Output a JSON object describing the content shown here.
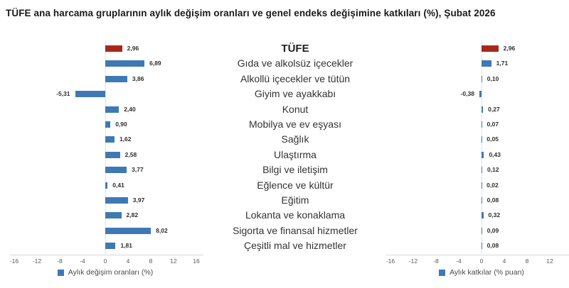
{
  "title": "TÜFE ana harcama gruplarının aylık değişim oranları ve genel endeks değişimine katkıları (%), Şubat 2026",
  "colors": {
    "highlight_bar": "#a8271d",
    "bar": "#3f79b5",
    "zero_line": "#dde2e8",
    "axis_line": "#d8d8d8",
    "tick_text": "#595959",
    "legend_text": "#4a4a4a"
  },
  "chart_data": [
    {
      "type": "bar",
      "orientation": "horizontal",
      "legend": "Aylık değişim oranları (%)",
      "legend_position": "bottom-center",
      "grid": "zero-line-only",
      "xlim": [
        -16,
        16
      ],
      "ticks": [
        -16,
        -12,
        -8,
        -4,
        0,
        4,
        8,
        12,
        16
      ],
      "categories": [
        "TÜFE",
        "Gıda ve alkolsüz içecekler",
        "Alkollü içecekler ve tütün",
        "Giyim ve ayakkabı",
        "Konut",
        "Mobilya ve ev eşyası",
        "Sağlık",
        "Ulaştırma",
        "Bilgi ve iletişim",
        "Eğlence ve kültür",
        "Eğitim",
        "Lokanta ve konaklama",
        "Sigorta ve finansal hizmetler",
        "Çeşitli mal ve hizmetler"
      ],
      "values": [
        2.96,
        6.89,
        3.86,
        -5.31,
        2.4,
        0.9,
        1.62,
        2.58,
        3.77,
        0.41,
        3.97,
        2.82,
        8.02,
        1.81
      ],
      "labels": [
        "2,96",
        "6,89",
        "3,86",
        "-5,31",
        "2,40",
        "0,90",
        "1,62",
        "2,58",
        "3,77",
        "0,41",
        "3,97",
        "2,82",
        "8,02",
        "1,81"
      ]
    },
    {
      "type": "bar",
      "orientation": "horizontal",
      "legend": "Aylık katkılar (% puan)",
      "legend_position": "bottom-center",
      "grid": "zero-line-only",
      "xlim": [
        -16,
        16
      ],
      "ticks": [
        -16,
        -12,
        -8,
        -4,
        0,
        4,
        8,
        12
      ],
      "categories": [
        "TÜFE",
        "Gıda ve alkolsüz içecekler",
        "Alkollü içecekler ve tütün",
        "Giyim ve ayakkabı",
        "Konut",
        "Mobilya ve ev eşyası",
        "Sağlık",
        "Ulaştırma",
        "Bilgi ve iletişim",
        "Eğlence ve kültür",
        "Eğitim",
        "Lokanta ve konaklama",
        "Sigorta ve finansal hizmetler",
        "Çeşitli mal ve hizmetler"
      ],
      "values": [
        2.96,
        1.71,
        0.1,
        -0.38,
        0.27,
        0.07,
        0.05,
        0.43,
        0.12,
        0.02,
        0.08,
        0.32,
        0.09,
        0.08
      ],
      "labels": [
        "2,96",
        "1,71",
        "0,10",
        "-0,38",
        "0,27",
        "0,07",
        "0,05",
        "0,43",
        "0,12",
        "0,02",
        "0,08",
        "0,32",
        "0,09",
        "0,08"
      ]
    }
  ]
}
